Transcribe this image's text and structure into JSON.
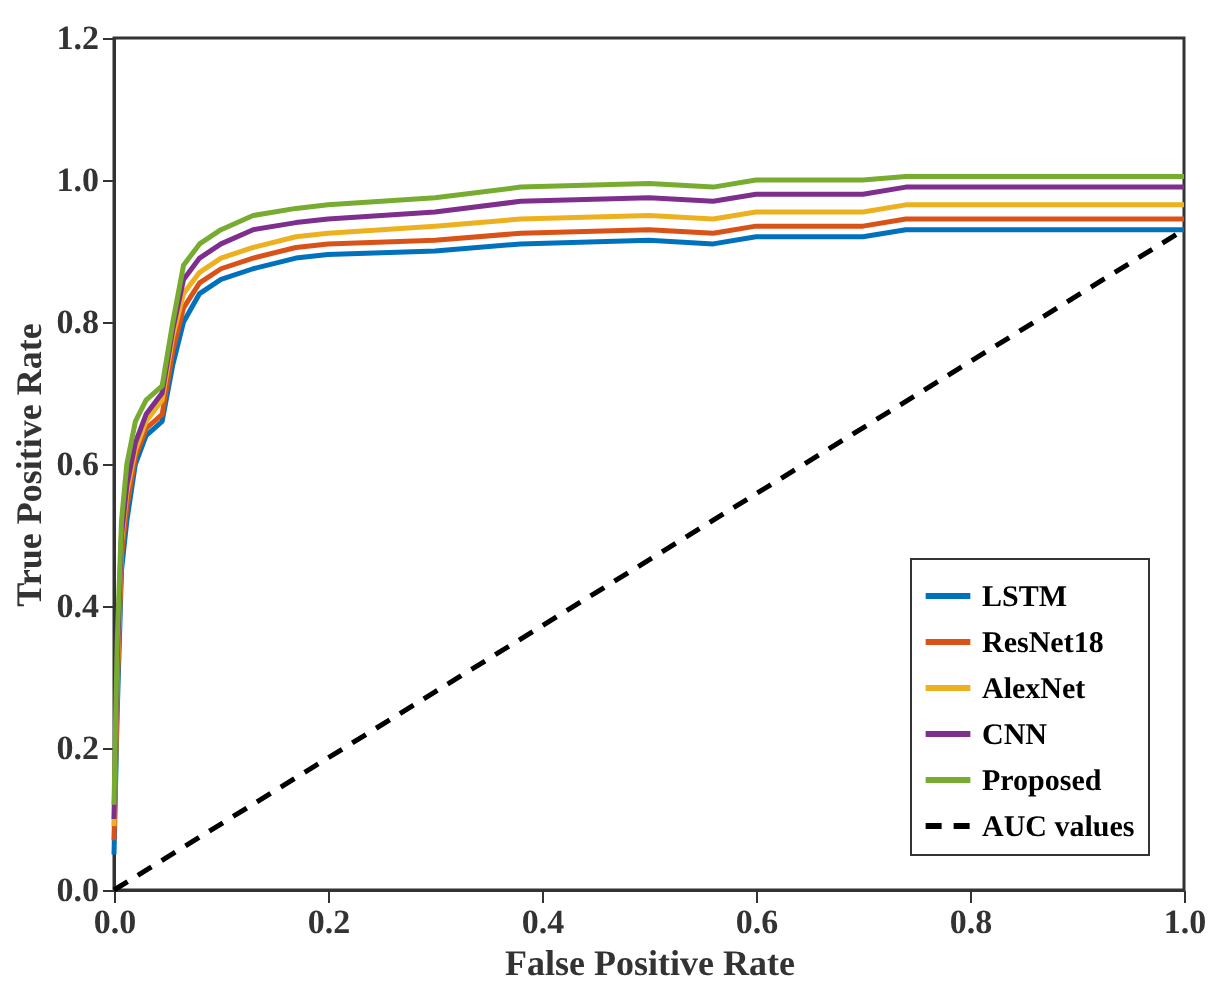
{
  "chart_data": {
    "type": "line",
    "xlabel": "False Positive Rate",
    "ylabel": "True Positive Rate",
    "x": [
      0,
      0.003,
      0.007,
      0.012,
      0.02,
      0.03,
      0.045,
      0.055,
      0.065,
      0.08,
      0.1,
      0.13,
      0.17,
      0.2,
      0.3,
      0.38,
      0.5,
      0.56,
      0.6,
      0.7,
      0.74,
      1
    ],
    "series": [
      {
        "name": "LSTM",
        "color": "#0072bd",
        "values": [
          0.05,
          0.25,
          0.45,
          0.52,
          0.6,
          0.64,
          0.66,
          0.74,
          0.8,
          0.84,
          0.86,
          0.875,
          0.89,
          0.895,
          0.9,
          0.91,
          0.915,
          0.91,
          0.92,
          0.92,
          0.93,
          0.93
        ]
      },
      {
        "name": "ResNet18",
        "color": "#d95319",
        "values": [
          0.07,
          0.28,
          0.47,
          0.54,
          0.61,
          0.65,
          0.67,
          0.76,
          0.82,
          0.855,
          0.875,
          0.89,
          0.905,
          0.91,
          0.915,
          0.925,
          0.93,
          0.925,
          0.935,
          0.935,
          0.945,
          0.945
        ]
      },
      {
        "name": "AlexNet",
        "color": "#edb120",
        "values": [
          0.09,
          0.3,
          0.49,
          0.56,
          0.62,
          0.66,
          0.69,
          0.78,
          0.84,
          0.87,
          0.89,
          0.905,
          0.92,
          0.925,
          0.935,
          0.945,
          0.95,
          0.945,
          0.955,
          0.955,
          0.965,
          0.965
        ]
      },
      {
        "name": "CNN",
        "color": "#7e2f8e",
        "values": [
          0.1,
          0.32,
          0.5,
          0.57,
          0.63,
          0.67,
          0.7,
          0.79,
          0.86,
          0.89,
          0.91,
          0.93,
          0.94,
          0.945,
          0.955,
          0.97,
          0.975,
          0.97,
          0.98,
          0.98,
          0.99,
          0.99
        ]
      },
      {
        "name": "Proposed",
        "color": "#77ac30",
        "values": [
          0.12,
          0.35,
          0.52,
          0.6,
          0.66,
          0.69,
          0.71,
          0.8,
          0.88,
          0.91,
          0.93,
          0.95,
          0.96,
          0.965,
          0.975,
          0.99,
          0.995,
          0.99,
          1.0,
          1.0,
          1.005,
          1.005
        ]
      },
      {
        "name": "AUC values",
        "color": "#000000",
        "type": "line",
        "line_style": "dashed",
        "x": [
          0,
          1
        ],
        "values": [
          0,
          0.93
        ]
      }
    ],
    "xlim": [
      0,
      1
    ],
    "ylim": [
      0,
      1.2
    ],
    "xticks": [
      {
        "value": 0,
        "label": "0.0"
      },
      0.2,
      0.4,
      0.6,
      0.8,
      {
        "value": 1,
        "label": "1.0"
      }
    ],
    "yticks": [
      {
        "value": 0,
        "label": "0.0"
      },
      0.2,
      0.4,
      0.6,
      0.8,
      {
        "value": 1,
        "label": "1.0"
      },
      1.2
    ],
    "grid": false,
    "legend": "bottom right",
    "marker": "none",
    "line_style": "solid"
  }
}
